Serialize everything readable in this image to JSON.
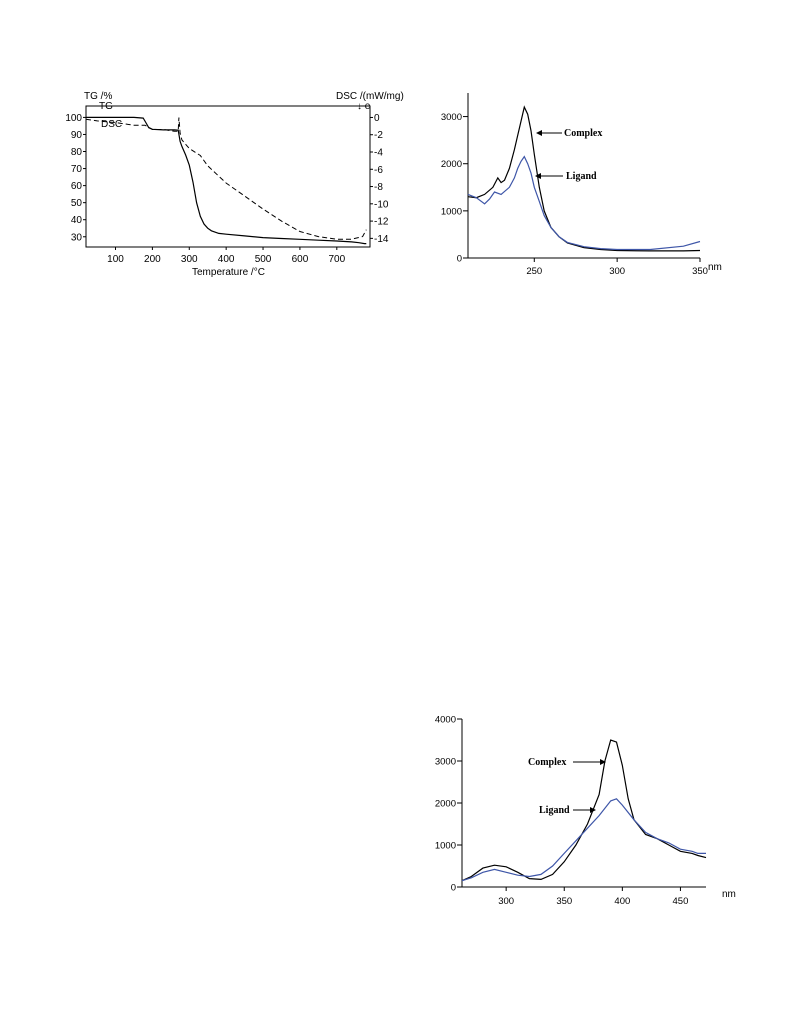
{
  "chart_data": [
    {
      "type": "line",
      "id": "tg-dsc",
      "ylabel_left": "TG /%",
      "ylabel_right": "DSC /(mW/mg)",
      "right_marker": "↓ e",
      "xlabel": "Temperature /°C",
      "xlim": [
        20,
        790
      ],
      "ylim_left": [
        24,
        102
      ],
      "ylim_right": [
        -15,
        0.4
      ],
      "xticks": [
        100,
        200,
        300,
        400,
        500,
        600,
        700
      ],
      "yticks_left": [
        30,
        40,
        50,
        60,
        70,
        80,
        90,
        100
      ],
      "yticks_right": [
        0,
        -2,
        -4,
        -6,
        -8,
        -10,
        -12,
        -14
      ],
      "series": [
        {
          "name": "TG",
          "axis": "left",
          "style": "solid",
          "x": [
            20,
            60,
            100,
            150,
            175,
            182,
            190,
            200,
            230,
            260,
            270,
            275,
            280,
            290,
            300,
            310,
            320,
            330,
            340,
            350,
            360,
            380,
            400,
            450,
            500,
            550,
            600,
            650,
            700,
            740,
            760,
            775,
            780
          ],
          "y": [
            100,
            100,
            100,
            100,
            99.6,
            97,
            94,
            93,
            92.7,
            92.7,
            92.5,
            86,
            83,
            78,
            72,
            62,
            50,
            42,
            37.5,
            35,
            33.5,
            32,
            31.5,
            30.5,
            29.5,
            29,
            28.5,
            28,
            27.5,
            27,
            26.5,
            26,
            26
          ]
        },
        {
          "name": "DSC",
          "axis": "right",
          "style": "dashed",
          "x": [
            20,
            50,
            100,
            150,
            180,
            200,
            230,
            260,
            270,
            272,
            275,
            280,
            300,
            330,
            350,
            380,
            400,
            450,
            500,
            550,
            600,
            650,
            700,
            740,
            770,
            780
          ],
          "y": [
            -0.2,
            -0.4,
            -0.6,
            -0.9,
            -0.9,
            -1.4,
            -1.4,
            -1.6,
            -1.6,
            0,
            -1.8,
            -2.6,
            -3.6,
            -4.4,
            -5.6,
            -6.8,
            -7.6,
            -9.1,
            -10.6,
            -12.0,
            -13.2,
            -13.8,
            -14.1,
            -14.1,
            -13.8,
            -13.0
          ]
        }
      ]
    },
    {
      "type": "line",
      "id": "uv-spectrum-1",
      "xunit": "nm",
      "xlim": [
        210,
        350
      ],
      "ylim": [
        0,
        3500
      ],
      "xticks": [
        250,
        300,
        350
      ],
      "yticks": [
        0,
        1000,
        2000,
        3000
      ],
      "series": [
        {
          "name": "Complex",
          "color": "#000000",
          "x": [
            210,
            215,
            220,
            225,
            228,
            230,
            232,
            235,
            238,
            240,
            242,
            244,
            246,
            248,
            250,
            253,
            256,
            260,
            265,
            270,
            280,
            290,
            300,
            320,
            340,
            350
          ],
          "y": [
            1300,
            1280,
            1350,
            1500,
            1700,
            1600,
            1650,
            1900,
            2300,
            2600,
            2900,
            3200,
            3050,
            2700,
            2200,
            1500,
            1000,
            650,
            450,
            320,
            220,
            180,
            160,
            150,
            150,
            160
          ]
        },
        {
          "name": "Ligand",
          "color": "#3e56a8",
          "x": [
            210,
            215,
            220,
            223,
            226,
            230,
            235,
            238,
            240,
            242,
            244,
            246,
            248,
            250,
            253,
            256,
            260,
            265,
            270,
            280,
            290,
            300,
            320,
            340,
            350
          ],
          "y": [
            1350,
            1280,
            1150,
            1250,
            1400,
            1350,
            1500,
            1700,
            1900,
            2050,
            2150,
            2000,
            1800,
            1500,
            1200,
            900,
            650,
            450,
            330,
            240,
            200,
            180,
            180,
            250,
            350
          ]
        }
      ]
    },
    {
      "type": "line",
      "id": "uv-spectrum-2",
      "xunit": "nm",
      "xlim": [
        262,
        472
      ],
      "ylim": [
        0,
        4000
      ],
      "xticks": [
        300,
        350,
        400,
        450
      ],
      "yticks": [
        0,
        1000,
        2000,
        3000,
        4000
      ],
      "series": [
        {
          "name": "Complex",
          "color": "#000000",
          "x": [
            262,
            270,
            280,
            290,
            300,
            310,
            320,
            330,
            340,
            350,
            360,
            370,
            380,
            385,
            390,
            395,
            400,
            405,
            410,
            420,
            430,
            440,
            450,
            460,
            465,
            472
          ],
          "y": [
            150,
            250,
            450,
            520,
            480,
            350,
            200,
            180,
            300,
            600,
            1000,
            1500,
            2200,
            3000,
            3500,
            3450,
            2900,
            2100,
            1600,
            1250,
            1150,
            1000,
            850,
            800,
            750,
            700
          ]
        },
        {
          "name": "Ligand",
          "color": "#3e56a8",
          "x": [
            262,
            270,
            280,
            290,
            300,
            310,
            320,
            330,
            340,
            350,
            360,
            370,
            380,
            390,
            395,
            400,
            410,
            420,
            430,
            440,
            450,
            460,
            465,
            472
          ],
          "y": [
            150,
            220,
            350,
            420,
            350,
            280,
            250,
            300,
            500,
            800,
            1100,
            1400,
            1700,
            2050,
            2100,
            1950,
            1600,
            1300,
            1150,
            1050,
            900,
            850,
            800,
            800
          ]
        }
      ]
    }
  ]
}
